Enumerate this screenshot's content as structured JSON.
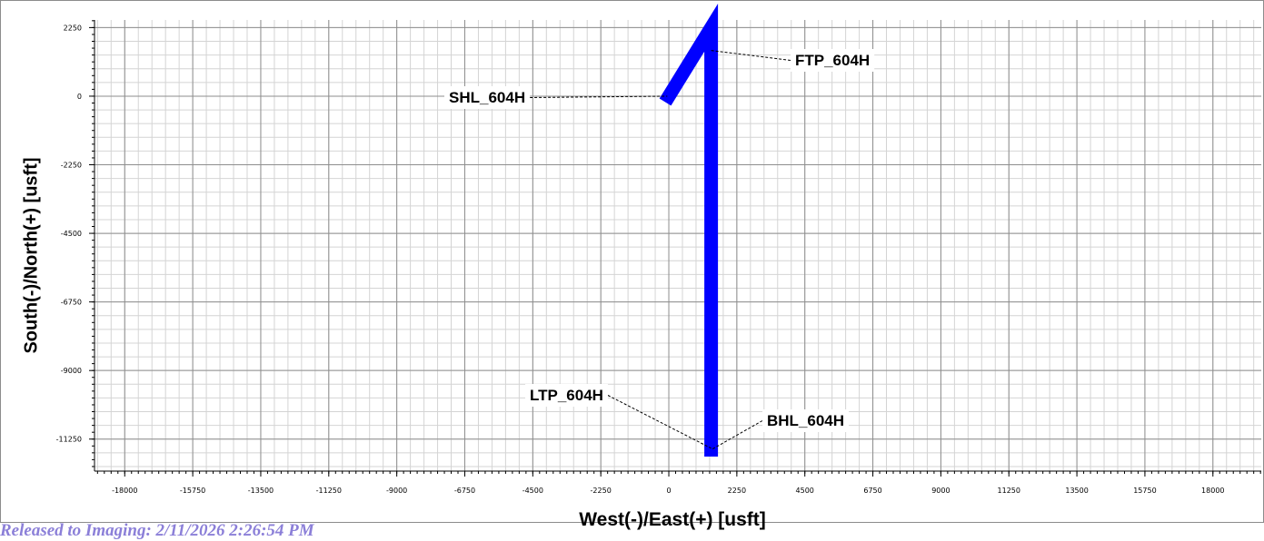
{
  "chart_data": {
    "type": "line",
    "xlabel": "West(-)/East(+) [usft]",
    "ylabel": "South(-)/North(+) [usft]",
    "xlim": [
      -19000,
      19600
    ],
    "ylim": [
      -12300,
      2500
    ],
    "x_ticks": [
      -18000,
      -15750,
      -13500,
      -11250,
      -9000,
      -6750,
      -4500,
      -2250,
      0,
      2250,
      4500,
      6750,
      9000,
      11250,
      13500,
      15750,
      18000
    ],
    "y_ticks": [
      2250,
      0,
      -2250,
      -4500,
      -6750,
      -9000,
      -11250
    ],
    "x_tick_labels": [
      "-18000",
      "-15750",
      "-13500",
      "-11250",
      "-9000",
      "-6750",
      "-4500",
      "-2250",
      "0",
      "2250",
      "4500",
      "6750",
      "9000",
      "11250",
      "13500",
      "15750",
      "18000"
    ],
    "y_tick_labels": [
      "2250",
      "0",
      "-2250",
      "-4500",
      "-6750",
      "-9000",
      "-11250"
    ],
    "grid": true,
    "series": [
      {
        "color": "#0000ff",
        "x": [
          0,
          1400,
          1400,
          1400
        ],
        "y": [
          0,
          2250,
          1500,
          -11600
        ]
      }
    ],
    "annotations": [
      {
        "text": "SHL_604H",
        "x": -50,
        "y": 0
      },
      {
        "text": "FTP_604H",
        "x": 1400,
        "y": 1500
      },
      {
        "text": "LTP_604H",
        "x": 1400,
        "y": -11550
      },
      {
        "text": "BHL_604H",
        "x": 1400,
        "y": -11600
      }
    ]
  },
  "stamp_text": "Released to Imaging: 2/11/2026 2:26:54 PM"
}
